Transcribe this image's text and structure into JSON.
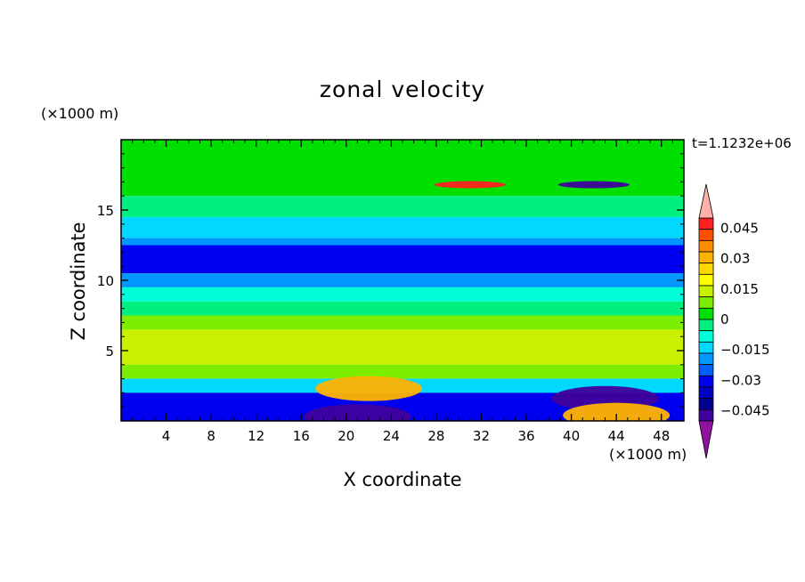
{
  "chart_data": {
    "type": "heatmap",
    "title": "zonal velocity",
    "xlabel": "X coordinate",
    "ylabel": "Z coordinate",
    "x_unit": "(×1000 m)",
    "y_unit": "(×1000 m)",
    "time_label": "t=1.1232e+06",
    "xlim": [
      0,
      50
    ],
    "ylim": [
      0,
      20
    ],
    "x_ticks": [
      4,
      8,
      12,
      16,
      20,
      24,
      28,
      32,
      36,
      40,
      44,
      48
    ],
    "y_ticks": [
      5,
      10,
      15
    ],
    "colorbar": {
      "range": [
        -0.05,
        0.05
      ],
      "ticks": [
        {
          "value": 0.045,
          "label": "0.045"
        },
        {
          "value": 0.03,
          "label": "0.03"
        },
        {
          "value": 0.015,
          "label": "0.015"
        },
        {
          "value": 0,
          "label": "0"
        },
        {
          "value": -0.015,
          "label": "−0.015"
        },
        {
          "value": -0.03,
          "label": "−0.03"
        },
        {
          "value": -0.045,
          "label": "−0.045"
        }
      ],
      "levels_top_to_bottom": [
        "#ff2020",
        "#ff5000",
        "#ff8c00",
        "#ffb300",
        "#ffd700",
        "#ffff00",
        "#c8f000",
        "#7cec00",
        "#00e000",
        "#00f080",
        "#00ffd8",
        "#00d8ff",
        "#0098ff",
        "#0060ff",
        "#0000f0",
        "#0000c0",
        "#000090",
        "#40009c"
      ],
      "over_color": "#ffb0a8",
      "under_color": "#9010a0"
    },
    "field": {
      "layers": [
        {
          "z": [
            17.5,
            20
          ],
          "value": 0.003
        },
        {
          "z": [
            16,
            17.5
          ],
          "value": 0.004
        },
        {
          "z": [
            14.5,
            16
          ],
          "value": -0.004
        },
        {
          "z": [
            13,
            14.5
          ],
          "value": -0.015
        },
        {
          "z": [
            12.5,
            13
          ],
          "value": -0.022
        },
        {
          "z": [
            10.5,
            12.5
          ],
          "value": -0.03
        },
        {
          "z": [
            9.5,
            10.5
          ],
          "value": -0.02
        },
        {
          "z": [
            8.5,
            9.5
          ],
          "value": -0.01
        },
        {
          "z": [
            7.5,
            8.5
          ],
          "value": 0.0
        },
        {
          "z": [
            6.5,
            7.5
          ],
          "value": 0.008
        },
        {
          "z": [
            4,
            6.5
          ],
          "value": 0.015
        },
        {
          "z": [
            3,
            4
          ],
          "value": 0.008
        },
        {
          "z": [
            2,
            3
          ],
          "value": -0.015
        },
        {
          "z": [
            0,
            2
          ],
          "value": -0.03
        }
      ],
      "features": [
        {
          "x": 22,
          "z": 2.3,
          "value": 0.03
        },
        {
          "x": 21,
          "z": 0.3,
          "value": -0.05
        },
        {
          "x": 43,
          "z": 1.6,
          "value": -0.045
        },
        {
          "x": 44,
          "z": 0.4,
          "value": 0.03
        },
        {
          "x": 31,
          "z": 16.8,
          "value": 0.05
        },
        {
          "x": 42,
          "z": 16.8,
          "value": -0.045
        }
      ]
    }
  }
}
